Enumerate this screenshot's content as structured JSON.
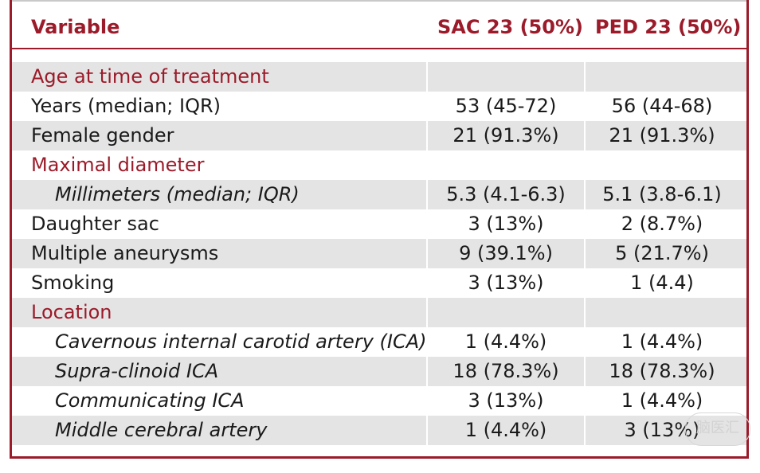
{
  "table": {
    "headers": {
      "variable": "Variable",
      "sac": "SAC 23 (50%)",
      "ped": "PED 23 (50%)"
    },
    "rows": [
      {
        "label": "Age at time of treatment",
        "sac": "",
        "ped": ""
      },
      {
        "label": "Years (median; IQR)",
        "sac": "53 (45-72)",
        "ped": "56 (44-68)"
      },
      {
        "label": "Female gender",
        "sac": "21 (91.3%)",
        "ped": "21 (91.3%)"
      },
      {
        "label": "Maximal diameter",
        "sac": "",
        "ped": ""
      },
      {
        "label": "Millimeters (median; IQR)",
        "sac": "5.3 (4.1-6.3)",
        "ped": "5.1 (3.8-6.1)"
      },
      {
        "label": "Daughter sac",
        "sac": "3 (13%)",
        "ped": "2 (8.7%)"
      },
      {
        "label": "Multiple aneurysms",
        "sac": "9 (39.1%)",
        "ped": "5 (21.7%)"
      },
      {
        "label": "Smoking",
        "sac": "3 (13%)",
        "ped": "1 (4.4)"
      },
      {
        "label": "Location",
        "sac": "",
        "ped": ""
      },
      {
        "label": "Cavernous internal carotid artery (ICA)",
        "sac": "1 (4.4%)",
        "ped": "1 (4.4%)"
      },
      {
        "label": "Supra-clinoid ICA",
        "sac": "18 (78.3%)",
        "ped": "18 (78.3%)"
      },
      {
        "label": "Communicating ICA",
        "sac": "3 (13%)",
        "ped": "1 (4.4%)"
      },
      {
        "label": "Middle cerebral artery",
        "sac": "1 (4.4%)",
        "ped": "3 (13%)"
      }
    ]
  },
  "watermark": "脑医汇",
  "colors": {
    "accent": "#9b1b2a",
    "shade": "#e4e4e4"
  }
}
